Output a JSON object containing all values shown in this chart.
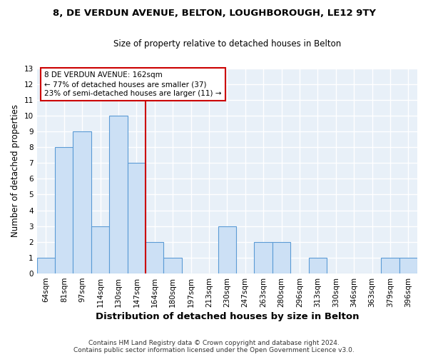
{
  "title": "8, DE VERDUN AVENUE, BELTON, LOUGHBOROUGH, LE12 9TY",
  "subtitle": "Size of property relative to detached houses in Belton",
  "xlabel": "Distribution of detached houses by size in Belton",
  "ylabel": "Number of detached properties",
  "categories": [
    "64sqm",
    "81sqm",
    "97sqm",
    "114sqm",
    "130sqm",
    "147sqm",
    "164sqm",
    "180sqm",
    "197sqm",
    "213sqm",
    "230sqm",
    "247sqm",
    "263sqm",
    "280sqm",
    "296sqm",
    "313sqm",
    "330sqm",
    "346sqm",
    "363sqm",
    "379sqm",
    "396sqm"
  ],
  "values": [
    1,
    8,
    9,
    3,
    10,
    7,
    2,
    1,
    0,
    0,
    3,
    0,
    2,
    2,
    0,
    1,
    0,
    0,
    0,
    1,
    1
  ],
  "bar_color": "#cce0f5",
  "bar_edge_color": "#5b9bd5",
  "vline_index": 6,
  "vline_color": "#cc0000",
  "annotation_line1": "8 DE VERDUN AVENUE: 162sqm",
  "annotation_line2": "← 77% of detached houses are smaller (37)",
  "annotation_line3": "23% of semi-detached houses are larger (11) →",
  "annotation_box_color": "white",
  "annotation_box_edgecolor": "#cc0000",
  "ylim": [
    0,
    13
  ],
  "yticks": [
    0,
    1,
    2,
    3,
    4,
    5,
    6,
    7,
    8,
    9,
    10,
    11,
    12,
    13
  ],
  "footer_line1": "Contains HM Land Registry data © Crown copyright and database right 2024.",
  "footer_line2": "Contains public sector information licensed under the Open Government Licence v3.0.",
  "bg_color": "#e8f0f8",
  "fig_bg_color": "#ffffff",
  "title_fontsize": 9.5,
  "subtitle_fontsize": 8.5,
  "tick_fontsize": 7.5,
  "ylabel_fontsize": 8.5,
  "xlabel_fontsize": 9.5,
  "footer_fontsize": 6.5
}
